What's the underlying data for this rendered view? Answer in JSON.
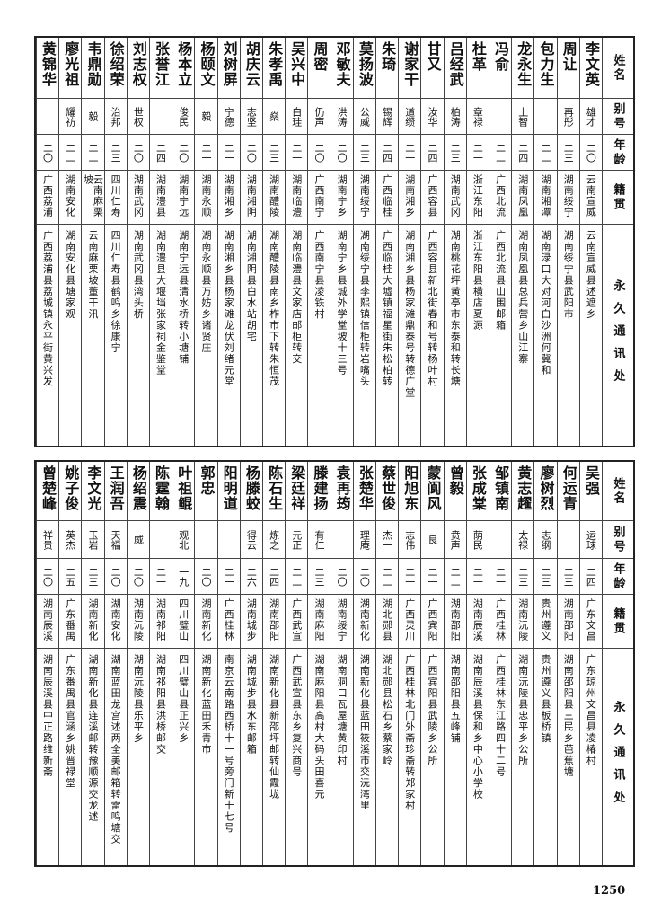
{
  "headers": {
    "name": "姓名",
    "alias": "别号",
    "age": "年龄",
    "native": "籍贯",
    "address": "永久通讯处"
  },
  "top_rows": [
    [
      "李文英",
      "雄才",
      "二〇",
      "云南宣威",
      "云南宣威县述遮乡"
    ],
    [
      "周让",
      "再彤",
      "二三",
      "湖南绥宁",
      "湖南绥宁县武阳市"
    ],
    [
      "包力生",
      "",
      "二二",
      "湖南湘潭",
      "湖南渌口大对河白沙洲何冀和"
    ],
    [
      "龙永生",
      "上智",
      "二四",
      "湖南凤凰",
      "湖南凤凰县总兵营乡山江寨"
    ],
    [
      "冯俞",
      "",
      "二二",
      "广西北流",
      "广西北流县山围邮箱"
    ],
    [
      "杜革",
      "章禄",
      "二一",
      "浙江东阳",
      "浙江东阳县横店夏源"
    ],
    [
      "吕经武",
      "柏涛",
      "二三",
      "湖南武冈",
      "湖南桃花坪黄亭市东泰和转长塘"
    ],
    [
      "甘又",
      "汝华",
      "二四",
      "广西容县",
      "广西容县新北街春和号转杨叶村"
    ],
    [
      "谢家干",
      "道缵",
      "二一",
      "湖南湘乡",
      "湖南湘乡县杨家滩鼎泰号转德广堂"
    ],
    [
      "朱琦",
      "锡辉",
      "二四",
      "广西临桂",
      "广西临桂大墟镇福星街朱松柏转"
    ],
    [
      "莫扬波",
      "公威",
      "二三",
      "湖南绥宁",
      "湖南绥宁县李熙镇信柜转岩嘴头"
    ],
    [
      "邓敏夫",
      "洪涛",
      "二〇",
      "湖南宁乡",
      "湖南宁乡县城外学堂坡十三号"
    ],
    [
      "周密",
      "仍声",
      "二〇",
      "广西南宁",
      "广西南宁县凌铁村"
    ],
    [
      "吴兴中",
      "白珪",
      "二一",
      "湖南临澧",
      "湖南临澧县文家店邮柜转交"
    ],
    [
      "朱孝禹",
      "燊",
      "二三",
      "湖南醴陵",
      "湖南醴陵县南乡柞市下转朱恒茂"
    ],
    [
      "胡庆云",
      "志坚",
      "二〇",
      "湖南湘阴",
      "湖南湘阴县白水站胡宅"
    ],
    [
      "刘树屏",
      "宁德",
      "二一",
      "湖南湘乡",
      "湖南湘乡县杨家滩龙伏刘绪元堂"
    ],
    [
      "杨颐文",
      "毅",
      "二一",
      "湖南永顺",
      "湖南永顺县万妨乡诸贤庄"
    ],
    [
      "杨本立",
      "俊民",
      "二〇",
      "湖南宁远",
      "湖南宁远县清水桥转小塘铺"
    ],
    [
      "张誉江",
      "",
      "二四",
      "湖南澧县",
      "湖南澧县大堰垱张家祠金鉴堂"
    ],
    [
      "刘志权",
      "世权",
      "二〇",
      "湖南武冈",
      "湖南武冈县湾头桥"
    ],
    [
      "徐绍荣",
      "治邦",
      "二三",
      "四川仁寿",
      "四川仁寿县鹤鸣乡徐康宁"
    ],
    [
      "韦鼎勋",
      "毅",
      "二二",
      "云南麻栗坡",
      "云南麻栗坡董干汛"
    ],
    [
      "廖光祖",
      "耀祊",
      "二二",
      "湖南安化",
      "湖南安化县塘家观"
    ],
    [
      "黄锦华",
      "",
      "二〇",
      "广西荔浦",
      "广西荔浦县荔城镇永平街黄兴发"
    ]
  ],
  "bottom_rows": [
    [
      "吴强",
      "运球",
      "二四",
      "广东文昌",
      "广东琼州文昌县凌椿村"
    ],
    [
      "何运青",
      "",
      "二三",
      "湖南邵阳",
      "湖南邵阳县三民乡芭蕉塘"
    ],
    [
      "廖树烈",
      "志纲",
      "二三",
      "贵州遵义",
      "贵州遵义县板桥镇"
    ],
    [
      "黄志趯",
      "太禄",
      "二三",
      "湖南沅陵",
      "湖南沅陵县忠平乡公所"
    ],
    [
      "邹镇南",
      "",
      "二一",
      "广西桂林",
      "广西桂林东江路四十二号"
    ],
    [
      "张成棠",
      "荫民",
      "二一",
      "湖南辰溪",
      "湖南辰溪县保和乡中心小学校"
    ],
    [
      "曾毅",
      "贲声",
      "二二",
      "湖南邵阳",
      "湖南邵阳县五峰铺"
    ],
    [
      "蒙阆风",
      "良",
      "二一",
      "广西宾阳",
      "广西宾阳县武陵乡公所"
    ],
    [
      "阳旭东",
      "志伟",
      "二一",
      "广西灵川",
      "广西桂林北门外斋珍斋转郑家村"
    ],
    [
      "蔡世俊",
      "杰一",
      "二二",
      "湖北郧县",
      "湖北郧县松石乡蔡家岭"
    ],
    [
      "张楚华",
      "理庵",
      "二〇",
      "湖南新化",
      "湖南新化县蓝田筱溪市交沅湾里"
    ],
    [
      "袁再筠",
      "",
      "二〇",
      "湖南绥宁",
      "湖南洞口瓦屋塘黄印村"
    ],
    [
      "滕建扬",
      "有仁",
      "二三",
      "湖南麻阳",
      "湖南麻阳县高村大码头田喜元"
    ],
    [
      "梁廷祥",
      "元正",
      "二二",
      "广西武宣",
      "广西武宣县东乡复兴商号"
    ],
    [
      "陈石生",
      "炼之",
      "二四",
      "湖南邵阳",
      "湖南新化县新邵坪邮转仙霞垅"
    ],
    [
      "杨滕蛟",
      "得云",
      "二六",
      "湖南城步",
      "湖南城步县水东邮箱"
    ],
    [
      "阳明道",
      "",
      "二一",
      "广西桂林",
      "南京云南路西桥十一号旁门新十七号"
    ],
    [
      "郭忠",
      "",
      "二〇",
      "湖南新化",
      "湖南新化蓝田禾青市"
    ],
    [
      "叶祖鲲",
      "观北",
      "一九",
      "四川璧山",
      "四川璧山县正兴乡"
    ],
    [
      "陈霆翰",
      "",
      "二一",
      "湖南祁阳",
      "湖南祁阳县洪桥邮交"
    ],
    [
      "杨绍震",
      "威",
      "二〇",
      "湖南沅陵",
      "湖南沅陵县乐平乡"
    ],
    [
      "王润吾",
      "天福",
      "二〇",
      "湖南安化",
      "湖南蓝田龙宫述两全美邮箱转雷鸣塘交"
    ],
    [
      "李文光",
      "玉岩",
      "二三",
      "湖南新化",
      "湖南新化县连溪邮转豫顺源交龙述"
    ],
    [
      "姚子俊",
      "英杰",
      "二五",
      "广东番禺",
      "广东番禺县官涵乡姚晋禄堂"
    ],
    [
      "曾楚峰",
      "祥贵",
      "二〇",
      "湖南辰溪",
      "湖南辰溪县中正路维新斋"
    ]
  ],
  "page_number": "1250"
}
